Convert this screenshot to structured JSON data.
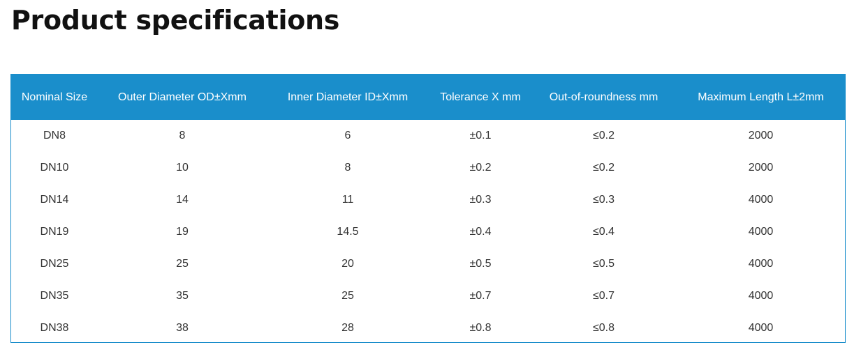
{
  "page": {
    "title": "Product specifications"
  },
  "table": {
    "headers": [
      "Nominal Size",
      "Outer Diameter OD±Xmm",
      "Inner Diameter ID±Xmm",
      "Tolerance X mm",
      "Out-of-roundness mm",
      "Maximum Length L±2mm"
    ],
    "rows": [
      [
        "DN8",
        "8",
        "6",
        "±0.1",
        "≤0.2",
        "2000"
      ],
      [
        "DN10",
        "10",
        "8",
        "±0.2",
        "≤0.2",
        "2000"
      ],
      [
        "DN14",
        "14",
        "11",
        "±0.3",
        "≤0.3",
        "4000"
      ],
      [
        "DN19",
        "19",
        "14.5",
        "±0.4",
        "≤0.4",
        "4000"
      ],
      [
        "DN25",
        "25",
        "20",
        "±0.5",
        "≤0.5",
        "4000"
      ],
      [
        "DN35",
        "35",
        "25",
        "±0.7",
        "≤0.7",
        "4000"
      ],
      [
        "DN38",
        "38",
        "28",
        "±0.8",
        "≤0.8",
        "4000"
      ]
    ]
  },
  "colors": {
    "header_background": "#1a8ecb",
    "header_text": "#ffffff",
    "cell_text": "#333333",
    "border": "#1a8ecb"
  }
}
